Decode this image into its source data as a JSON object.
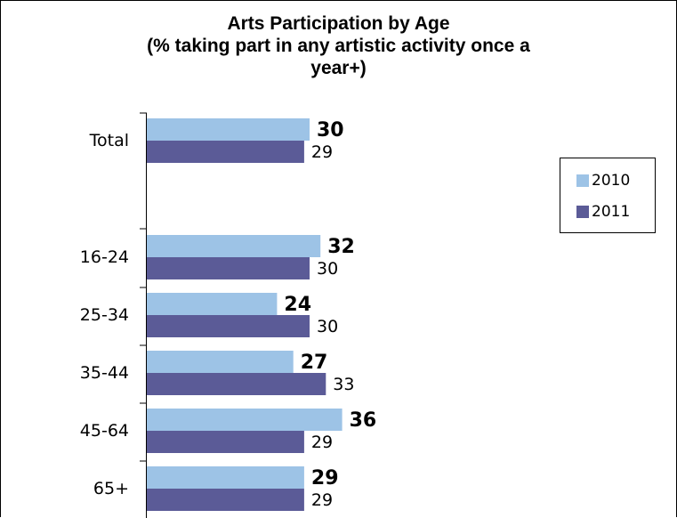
{
  "chart_data": {
    "type": "bar",
    "orientation": "horizontal",
    "title": "Arts Participation by Age",
    "subtitle_lines": [
      "(% taking part in any artistic activity once a",
      "year+)"
    ],
    "categories": [
      "Total",
      "16-24",
      "25-34",
      "35-44",
      "45-64",
      "65+"
    ],
    "series": [
      {
        "name": "2010",
        "values": [
          30,
          32,
          24,
          27,
          36,
          29
        ],
        "color": "#9dc3e6"
      },
      {
        "name": "2011",
        "values": [
          29,
          30,
          30,
          33,
          29,
          29
        ],
        "color": "#5b5b97"
      }
    ],
    "legend_position": "right",
    "grid": false
  }
}
